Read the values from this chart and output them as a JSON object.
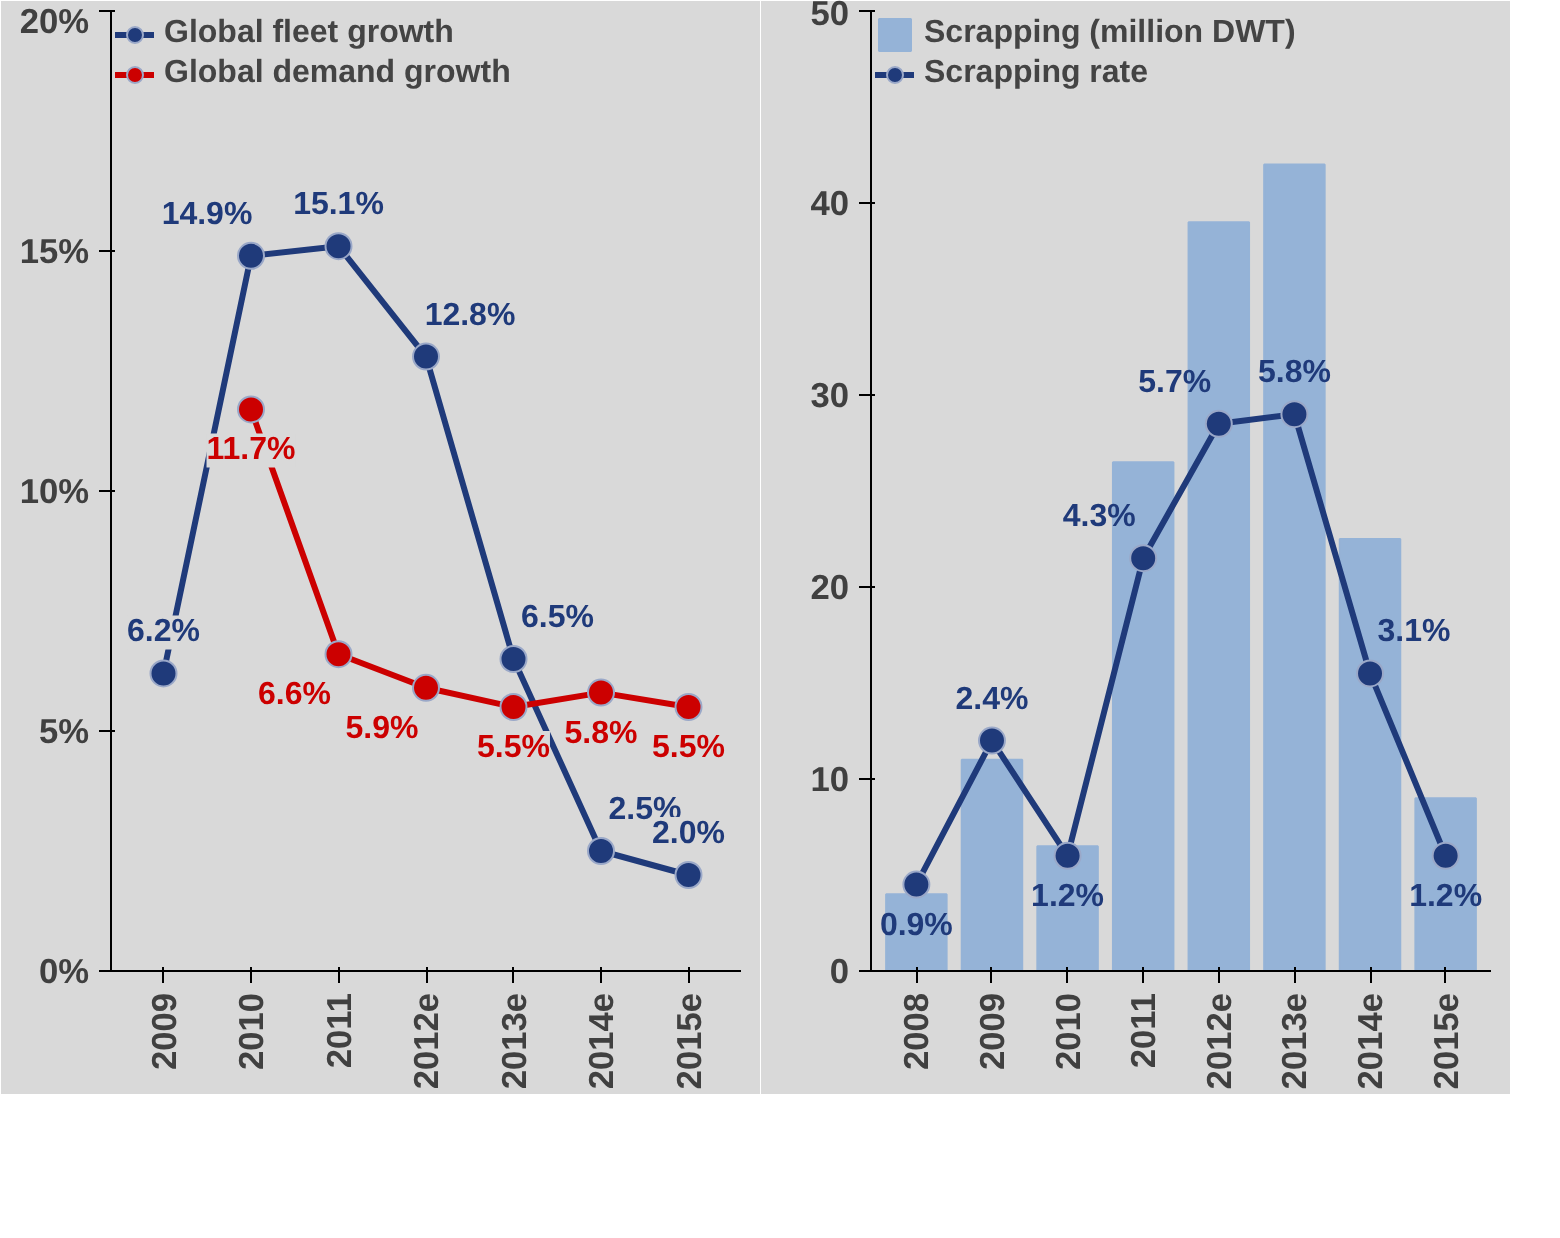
{
  "chart_data": [
    {
      "type": "line",
      "categories": [
        "2009",
        "2010",
        "2011",
        "2012e",
        "2013e",
        "2014e",
        "2015e"
      ],
      "series": [
        {
          "name": "Global fleet growth",
          "color": "#1f3a7a",
          "values": [
            6.2,
            14.9,
            15.1,
            12.8,
            6.5,
            2.5,
            2.0
          ],
          "value_labels": [
            "6.2%",
            "14.9%",
            "15.1%",
            "12.8%",
            "6.5%",
            "2.5%",
            "2.0%"
          ]
        },
        {
          "name": "Global demand growth",
          "color": "#cc0000",
          "values": [
            null,
            11.7,
            6.6,
            5.9,
            5.5,
            5.8,
            5.5
          ],
          "value_labels": [
            null,
            "11.7%",
            "6.6%",
            "5.9%",
            "5.5%",
            "5.8%",
            "5.5%"
          ]
        }
      ],
      "ylim": [
        0,
        20
      ],
      "yticks": [
        {
          "value": 0,
          "label": "0%"
        },
        {
          "value": 5,
          "label": "5%"
        },
        {
          "value": 10,
          "label": "10%"
        },
        {
          "value": 15,
          "label": "15%"
        },
        {
          "value": 20,
          "label": "20%"
        }
      ],
      "marker": "circle",
      "line_style": "solid",
      "legend": "top",
      "grid": false
    },
    {
      "type": "bar",
      "categories": [
        "2008",
        "2009",
        "2010",
        "2011",
        "2012e",
        "2013e",
        "2014e",
        "2015e"
      ],
      "series": [
        {
          "name": "Scrapping (million DWT)",
          "color": "#95b3d7",
          "values": [
            4,
            11,
            6.5,
            26.5,
            39,
            42,
            22.5,
            9
          ]
        },
        {
          "name": "Scrapping rate",
          "type": "line",
          "axis": "y2",
          "color": "#1f3a7a",
          "values": [
            0.9,
            2.4,
            1.2,
            4.3,
            5.7,
            5.8,
            3.1,
            1.2
          ],
          "value_labels": [
            "0.9%",
            "2.4%",
            "1.2%",
            "4.3%",
            "5.7%",
            "5.8%",
            "3.1%",
            "1.2%"
          ]
        }
      ],
      "ylim": [
        0,
        50
      ],
      "yticks": [
        0,
        10,
        20,
        30,
        40,
        50
      ],
      "y2lim": [
        0,
        10
      ],
      "marker": "circle",
      "line_style": "solid",
      "legend": "top",
      "grid": false
    }
  ]
}
